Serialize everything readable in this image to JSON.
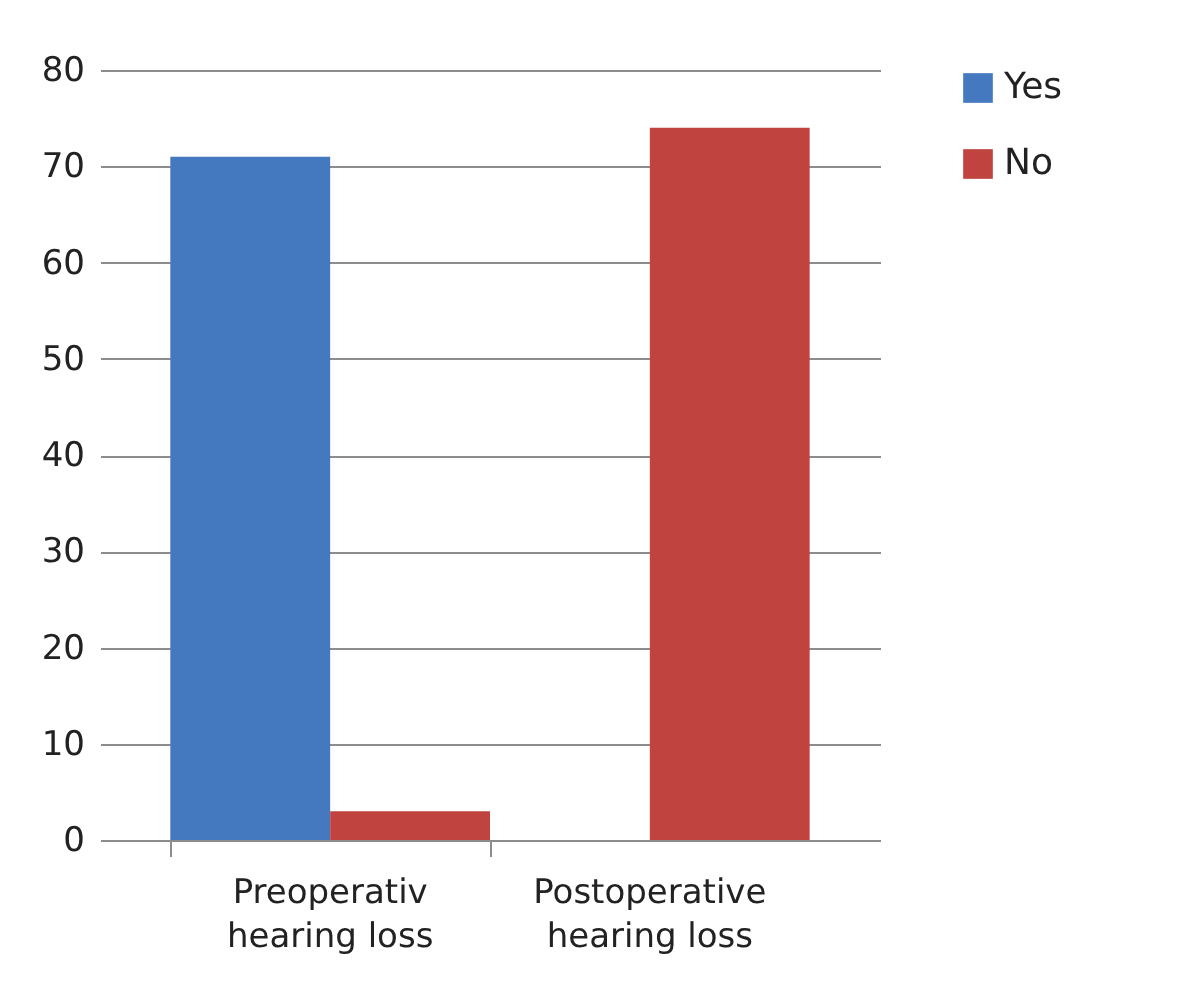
{
  "chart_data": {
    "type": "bar",
    "categories": [
      "Preoperativ hearing loss",
      "Postoperative hearing loss"
    ],
    "series": [
      {
        "name": "Yes",
        "color": "#4479c0",
        "values": [
          71,
          0
        ]
      },
      {
        "name": "No",
        "color": "#c0433f",
        "values": [
          3,
          74
        ]
      }
    ],
    "ylim": [
      0,
      80
    ],
    "yticks": [
      0,
      10,
      20,
      30,
      40,
      50,
      60,
      70,
      80
    ],
    "grid": "y",
    "legend": "right"
  }
}
